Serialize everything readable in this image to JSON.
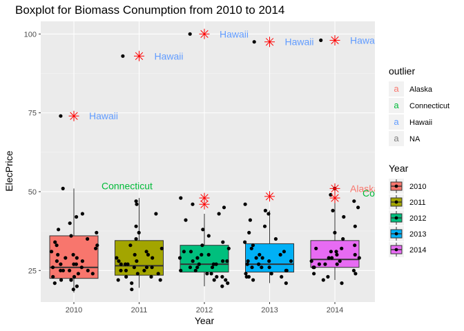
{
  "chart_data": {
    "type": "boxplot",
    "title": "Boxplot for Biomass Conumption from 2010 to 2014",
    "xlabel": "Year",
    "ylabel": "ElecPrice",
    "categories": [
      "2010",
      "2011",
      "2012",
      "2013",
      "2014"
    ],
    "ylim": [
      15,
      104
    ],
    "yticks": [
      25,
      50,
      75,
      100
    ],
    "grid": true,
    "box_colors": [
      "#F8766D",
      "#A3A500",
      "#00BF7D",
      "#00B0F6",
      "#E76BF3"
    ],
    "boxes": [
      {
        "year": "2010",
        "lower": 18,
        "q1": 22.5,
        "median": 26,
        "q3": 36,
        "upper": 51
      },
      {
        "year": "2011",
        "lower": 19.5,
        "q1": 23.5,
        "median": 26.5,
        "q3": 34.5,
        "upper": 48
      },
      {
        "year": "2012",
        "lower": 20,
        "q1": 24.5,
        "median": 27,
        "q3": 33,
        "upper": 43
      },
      {
        "year": "2013",
        "lower": 21,
        "q1": 24.5,
        "median": 27,
        "q3": 33.5,
        "upper": 44
      },
      {
        "year": "2014",
        "lower": 22,
        "q1": 26,
        "median": 28.5,
        "q3": 34.5,
        "upper": 49.5
      }
    ],
    "outliers": [
      {
        "year": "2010",
        "value": 74,
        "label": "Hawaii",
        "group": "Hawaii"
      },
      {
        "year": "2011",
        "value": 93,
        "label": "Hawaii",
        "group": "Hawaii"
      },
      {
        "year": "2012",
        "value": 100,
        "label": "Hawaii",
        "group": "Hawaii"
      },
      {
        "year": "2012",
        "value": 48,
        "label": "",
        "group": "NA"
      },
      {
        "year": "2012",
        "value": 46,
        "label": "",
        "group": "NA"
      },
      {
        "year": "2013",
        "value": 97.5,
        "label": "Hawaii",
        "group": "Hawaii"
      },
      {
        "year": "2013",
        "value": 48.5,
        "label": "",
        "group": "NA"
      },
      {
        "year": "2014",
        "value": 98,
        "label": "Hawaii",
        "group": "Hawaii"
      },
      {
        "year": "2014",
        "value": 51,
        "label": "Alaska",
        "group": "Alaska"
      },
      {
        "year": "2014",
        "value": 48,
        "label": "",
        "group": "NA"
      }
    ],
    "connecticut_label": {
      "year": "2010",
      "value": 51,
      "label": "Connecticut"
    },
    "connecticut_label_2014": {
      "year": "2014",
      "value": 49.5,
      "label": "Co"
    },
    "jitter_points": {
      "2010": [
        19,
        20,
        21,
        22,
        22,
        23,
        23,
        24,
        24,
        25,
        25,
        25,
        26,
        26,
        27,
        27,
        28,
        28,
        29,
        30,
        30,
        31,
        32,
        33,
        34,
        36,
        37,
        38,
        40,
        42,
        43,
        51,
        74,
        22,
        25,
        27,
        29,
        33,
        35
      ],
      "2011": [
        19,
        21,
        22,
        22,
        23,
        24,
        24,
        25,
        25,
        26,
        26,
        26,
        27,
        27,
        28,
        28,
        29,
        30,
        30,
        31,
        32,
        33,
        35,
        37,
        39,
        43,
        46,
        47,
        93,
        23,
        25,
        27,
        29
      ],
      "2012": [
        20,
        21,
        22,
        23,
        23,
        24,
        24,
        25,
        25,
        26,
        26,
        27,
        27,
        27,
        28,
        28,
        29,
        29,
        30,
        30,
        31,
        32,
        33,
        34,
        36,
        38,
        41,
        43,
        45,
        46,
        48,
        100,
        22,
        26,
        28,
        31
      ],
      "2013": [
        21,
        22,
        23,
        23,
        24,
        24,
        25,
        25,
        26,
        26,
        27,
        27,
        28,
        28,
        29,
        29,
        30,
        31,
        32,
        33,
        34,
        35,
        37,
        39,
        41,
        43,
        44,
        46,
        97.5,
        23,
        26,
        28,
        30
      ],
      "2014": [
        21,
        22,
        23,
        24,
        25,
        26,
        26,
        27,
        27,
        28,
        28,
        29,
        29,
        30,
        30,
        31,
        31,
        32,
        33,
        35,
        37,
        39,
        42,
        44,
        45,
        47,
        49,
        51,
        98,
        24,
        27,
        29,
        32
      ]
    },
    "legend_outlier": {
      "title": "outlier",
      "items": [
        {
          "label": "Alaska",
          "color": "#F8766D",
          "glyph": "a"
        },
        {
          "label": "Connecticut",
          "color": "#00BA38",
          "glyph": "a"
        },
        {
          "label": "Hawaii",
          "color": "#619CFF",
          "glyph": "a"
        },
        {
          "label": "NA",
          "color": "#7F7F7F",
          "glyph": "a"
        }
      ]
    },
    "legend_year": {
      "title": "Year",
      "items": [
        "2010",
        "2011",
        "2012",
        "2013",
        "2014"
      ]
    }
  }
}
